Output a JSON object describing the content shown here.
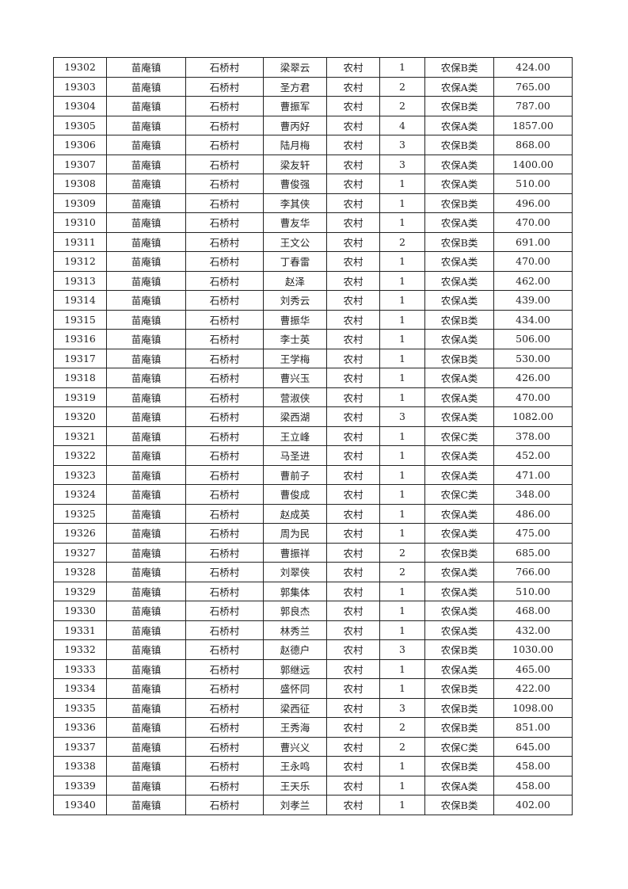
{
  "rows": [
    [
      "19302",
      "苗庵镇",
      "石桥村",
      "梁翠云",
      "农村",
      "1",
      "农保B类",
      "424.00"
    ],
    [
      "19303",
      "苗庵镇",
      "石桥村",
      "圣方君",
      "农村",
      "2",
      "农保A类",
      "765.00"
    ],
    [
      "19304",
      "苗庵镇",
      "石桥村",
      "曹振军",
      "农村",
      "2",
      "农保B类",
      "787.00"
    ],
    [
      "19305",
      "苗庵镇",
      "石桥村",
      "曹丙好",
      "农村",
      "4",
      "农保A类",
      "1857.00"
    ],
    [
      "19306",
      "苗庵镇",
      "石桥村",
      "陆月梅",
      "农村",
      "3",
      "农保B类",
      "868.00"
    ],
    [
      "19307",
      "苗庵镇",
      "石桥村",
      "梁友轩",
      "农村",
      "3",
      "农保A类",
      "1400.00"
    ],
    [
      "19308",
      "苗庵镇",
      "石桥村",
      "曹俊强",
      "农村",
      "1",
      "农保A类",
      "510.00"
    ],
    [
      "19309",
      "苗庵镇",
      "石桥村",
      "李其侠",
      "农村",
      "1",
      "农保B类",
      "496.00"
    ],
    [
      "19310",
      "苗庵镇",
      "石桥村",
      "曹友华",
      "农村",
      "1",
      "农保A类",
      "470.00"
    ],
    [
      "19311",
      "苗庵镇",
      "石桥村",
      "王文公",
      "农村",
      "2",
      "农保B类",
      "691.00"
    ],
    [
      "19312",
      "苗庵镇",
      "石桥村",
      "丁春雷",
      "农村",
      "1",
      "农保A类",
      "470.00"
    ],
    [
      "19313",
      "苗庵镇",
      "石桥村",
      "赵泽",
      "农村",
      "1",
      "农保A类",
      "462.00"
    ],
    [
      "19314",
      "苗庵镇",
      "石桥村",
      "刘秀云",
      "农村",
      "1",
      "农保A类",
      "439.00"
    ],
    [
      "19315",
      "苗庵镇",
      "石桥村",
      "曹振华",
      "农村",
      "1",
      "农保B类",
      "434.00"
    ],
    [
      "19316",
      "苗庵镇",
      "石桥村",
      "李士英",
      "农村",
      "1",
      "农保A类",
      "506.00"
    ],
    [
      "19317",
      "苗庵镇",
      "石桥村",
      "王学梅",
      "农村",
      "1",
      "农保B类",
      "530.00"
    ],
    [
      "19318",
      "苗庵镇",
      "石桥村",
      "曹兴玉",
      "农村",
      "1",
      "农保A类",
      "426.00"
    ],
    [
      "19319",
      "苗庵镇",
      "石桥村",
      "营淑侠",
      "农村",
      "1",
      "农保A类",
      "470.00"
    ],
    [
      "19320",
      "苗庵镇",
      "石桥村",
      "梁西湖",
      "农村",
      "3",
      "农保A类",
      "1082.00"
    ],
    [
      "19321",
      "苗庵镇",
      "石桥村",
      "王立峰",
      "农村",
      "1",
      "农保C类",
      "378.00"
    ],
    [
      "19322",
      "苗庵镇",
      "石桥村",
      "马圣进",
      "农村",
      "1",
      "农保A类",
      "452.00"
    ],
    [
      "19323",
      "苗庵镇",
      "石桥村",
      "曹前子",
      "农村",
      "1",
      "农保A类",
      "471.00"
    ],
    [
      "19324",
      "苗庵镇",
      "石桥村",
      "曹俊成",
      "农村",
      "1",
      "农保C类",
      "348.00"
    ],
    [
      "19325",
      "苗庵镇",
      "石桥村",
      "赵成英",
      "农村",
      "1",
      "农保A类",
      "486.00"
    ],
    [
      "19326",
      "苗庵镇",
      "石桥村",
      "周为民",
      "农村",
      "1",
      "农保A类",
      "475.00"
    ],
    [
      "19327",
      "苗庵镇",
      "石桥村",
      "曹振祥",
      "农村",
      "2",
      "农保B类",
      "685.00"
    ],
    [
      "19328",
      "苗庵镇",
      "石桥村",
      "刘翠侠",
      "农村",
      "2",
      "农保A类",
      "766.00"
    ],
    [
      "19329",
      "苗庵镇",
      "石桥村",
      "郭集体",
      "农村",
      "1",
      "农保A类",
      "510.00"
    ],
    [
      "19330",
      "苗庵镇",
      "石桥村",
      "郭良杰",
      "农村",
      "1",
      "农保A类",
      "468.00"
    ],
    [
      "19331",
      "苗庵镇",
      "石桥村",
      "林秀兰",
      "农村",
      "1",
      "农保A类",
      "432.00"
    ],
    [
      "19332",
      "苗庵镇",
      "石桥村",
      "赵德户",
      "农村",
      "3",
      "农保B类",
      "1030.00"
    ],
    [
      "19333",
      "苗庵镇",
      "石桥村",
      "郭继远",
      "农村",
      "1",
      "农保A类",
      "465.00"
    ],
    [
      "19334",
      "苗庵镇",
      "石桥村",
      "盛怀同",
      "农村",
      "1",
      "农保B类",
      "422.00"
    ],
    [
      "19335",
      "苗庵镇",
      "石桥村",
      "梁西征",
      "农村",
      "3",
      "农保B类",
      "1098.00"
    ],
    [
      "19336",
      "苗庵镇",
      "石桥村",
      "王秀海",
      "农村",
      "2",
      "农保B类",
      "851.00"
    ],
    [
      "19337",
      "苗庵镇",
      "石桥村",
      "曹兴义",
      "农村",
      "2",
      "农保C类",
      "645.00"
    ],
    [
      "19338",
      "苗庵镇",
      "石桥村",
      "王永鸣",
      "农村",
      "1",
      "农保B类",
      "458.00"
    ],
    [
      "19339",
      "苗庵镇",
      "石桥村",
      "王天乐",
      "农村",
      "1",
      "农保A类",
      "458.00"
    ],
    [
      "19340",
      "苗庵镇",
      "石桥村",
      "刘孝兰",
      "农村",
      "1",
      "农保B类",
      "402.00"
    ]
  ]
}
